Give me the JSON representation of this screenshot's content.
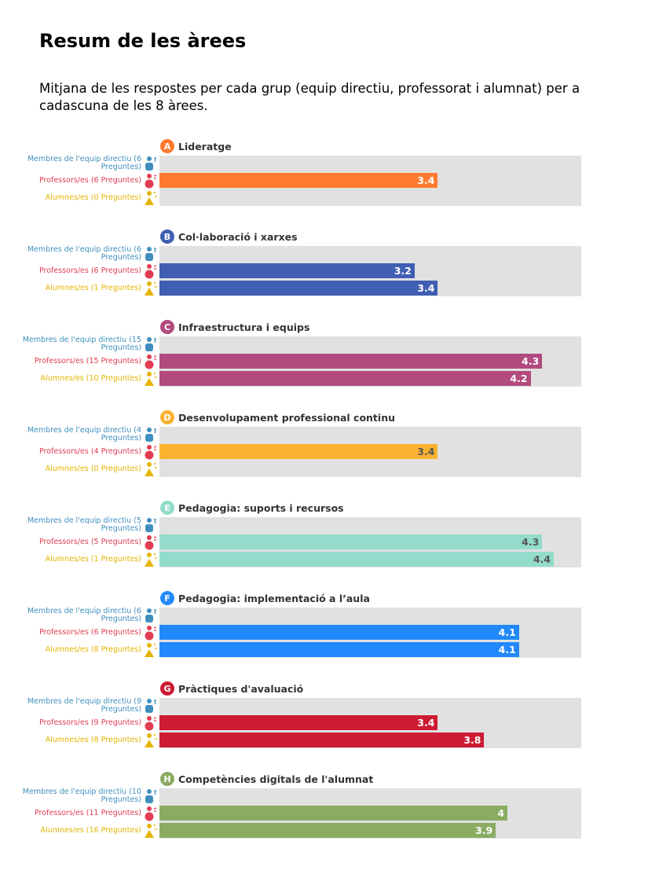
{
  "page": {
    "title": "Resum de les àrees",
    "subtitle": "Mitjana de les respostes per cada grup (equip directiu, professorat i alumnat) per a cadascuna de les 8 àrees."
  },
  "groups": [
    {
      "name": "Membres de l'equip directiu",
      "color": "#3f8fbe",
      "icon": "leader-person-icon"
    },
    {
      "name": "Professors/es",
      "color": "#e23d53",
      "icon": "teacher-person-icon"
    },
    {
      "name": "Alumnes/es",
      "color": "#e4b500",
      "icon": "student-person-icon"
    }
  ],
  "chart_data": [
    {
      "type": "bar",
      "letter": "A",
      "title": "Lideratge",
      "color": "#ff7a2f",
      "value_text_color": "#ffffff",
      "xlim": [
        1,
        5
      ],
      "categories": [
        "Membres de l'equip directiu (6 Preguntes)",
        "Professors/es (6 Preguntes)",
        "Alumnes/es (0 Preguntes)"
      ],
      "values": [
        null,
        3.4,
        null
      ]
    },
    {
      "type": "bar",
      "letter": "B",
      "title": "Col·laboració i xarxes",
      "color": "#405eb3",
      "value_text_color": "#ffffff",
      "xlim": [
        1,
        5
      ],
      "categories": [
        "Membres de l'equip directiu (6 Preguntes)",
        "Professors/es (6 Preguntes)",
        "Alumnes/es (1 Preguntes)"
      ],
      "values": [
        null,
        3.2,
        3.4
      ]
    },
    {
      "type": "bar",
      "letter": "C",
      "title": "Infraestructura i equips",
      "color": "#b24a7f",
      "value_text_color": "#ffffff",
      "xlim": [
        1,
        5
      ],
      "categories": [
        "Membres de l'equip directiu (15 Preguntes)",
        "Professors/es (15 Preguntes)",
        "Alumnes/es (10 Preguntes)"
      ],
      "values": [
        null,
        4.3,
        4.2
      ]
    },
    {
      "type": "bar",
      "letter": "D",
      "title": "Desenvolupament professional continu",
      "color": "#fbb231",
      "value_text_color": "#555555",
      "xlim": [
        1,
        5
      ],
      "categories": [
        "Membres de l'equip directiu (4 Preguntes)",
        "Professors/es (4 Preguntes)",
        "Alumnes/es (0 Preguntes)"
      ],
      "values": [
        null,
        3.4,
        null
      ]
    },
    {
      "type": "bar",
      "letter": "E",
      "title": "Pedagogia: suports i recursos",
      "color": "#93dccc",
      "value_text_color": "#555555",
      "xlim": [
        1,
        5
      ],
      "categories": [
        "Membres de l'equip directiu (5 Preguntes)",
        "Professors/es (5 Preguntes)",
        "Alumnes/es (1 Preguntes)"
      ],
      "values": [
        null,
        4.3,
        4.4
      ]
    },
    {
      "type": "bar",
      "letter": "F",
      "title": "Pedagogia: implementació a l’aula",
      "color": "#2189fb",
      "value_text_color": "#ffffff",
      "xlim": [
        1,
        5
      ],
      "categories": [
        "Membres de l'equip directiu (6 Preguntes)",
        "Professors/es (6 Preguntes)",
        "Alumnes/es (8 Preguntes)"
      ],
      "values": [
        null,
        4.1,
        4.1
      ]
    },
    {
      "type": "bar",
      "letter": "G",
      "title": "Pràctiques d'avaluació",
      "color": "#cd1b33",
      "value_text_color": "#ffffff",
      "xlim": [
        1,
        5
      ],
      "categories": [
        "Membres de l'equip directiu (9 Preguntes)",
        "Professors/es (9 Preguntes)",
        "Alumnes/es (8 Preguntes)"
      ],
      "values": [
        null,
        3.4,
        3.8
      ]
    },
    {
      "type": "bar",
      "letter": "H",
      "title": "Competències digitals de l'alumnat",
      "color": "#8aab62",
      "value_text_color": "#ffffff",
      "xlim": [
        1,
        5
      ],
      "categories": [
        "Membres de l'equip directiu (10 Preguntes)",
        "Professors/es (11 Preguntes)",
        "Alumnes/es (16 Preguntes)"
      ],
      "values": [
        null,
        4,
        3.9
      ]
    }
  ]
}
